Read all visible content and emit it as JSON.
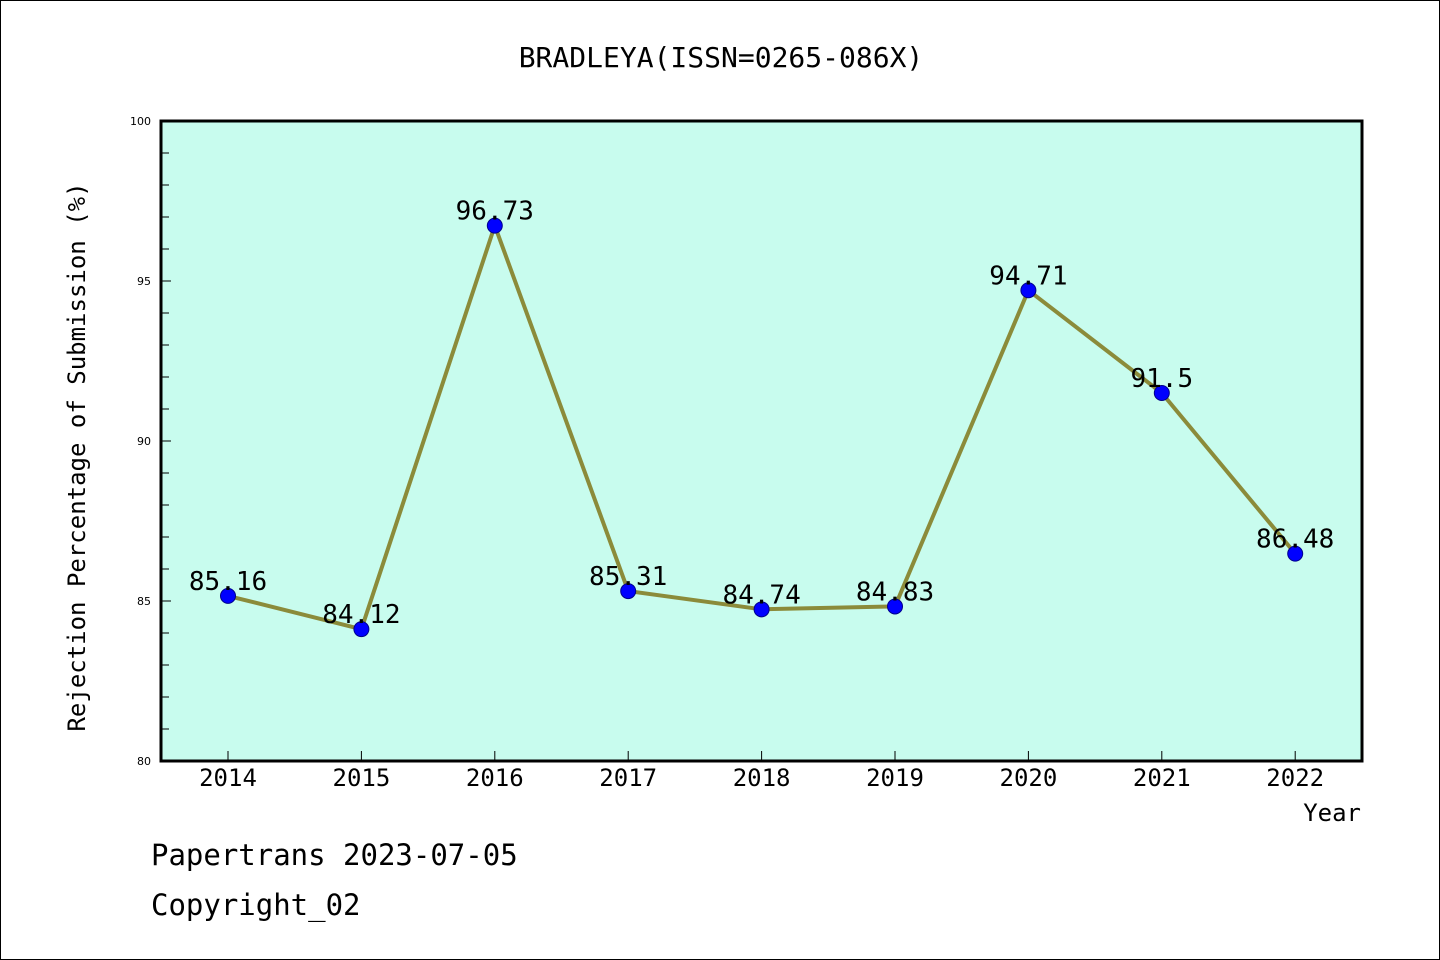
{
  "chart_data": {
    "type": "line",
    "title": "BRADLEYA(ISSN=0265-086X)",
    "xlabel": "Year",
    "ylabel": "Rejection Percentage of Submission (%)",
    "categories": [
      "2014",
      "2015",
      "2016",
      "2017",
      "2018",
      "2019",
      "2020",
      "2021",
      "2022"
    ],
    "series": [
      {
        "values": [
          85.16,
          84.12,
          96.73,
          85.31,
          84.74,
          84.83,
          94.71,
          91.5,
          86.48
        ]
      }
    ],
    "data_labels": [
      "85.16",
      "84.12",
      "96.73",
      "85.31",
      "84.74",
      "84.83",
      "94.71",
      "91.5",
      "86.48"
    ],
    "ylim": [
      80,
      100
    ],
    "yticks": [
      80,
      85,
      90,
      95,
      100
    ],
    "grid": false,
    "legend": "none",
    "colors": {
      "plot_background": "#c8fcee",
      "line": "#8b8b3a",
      "marker": "#0000ff"
    }
  },
  "footer": {
    "line1": "Papertrans 2023-07-05",
    "line2": "Copyright_02"
  }
}
